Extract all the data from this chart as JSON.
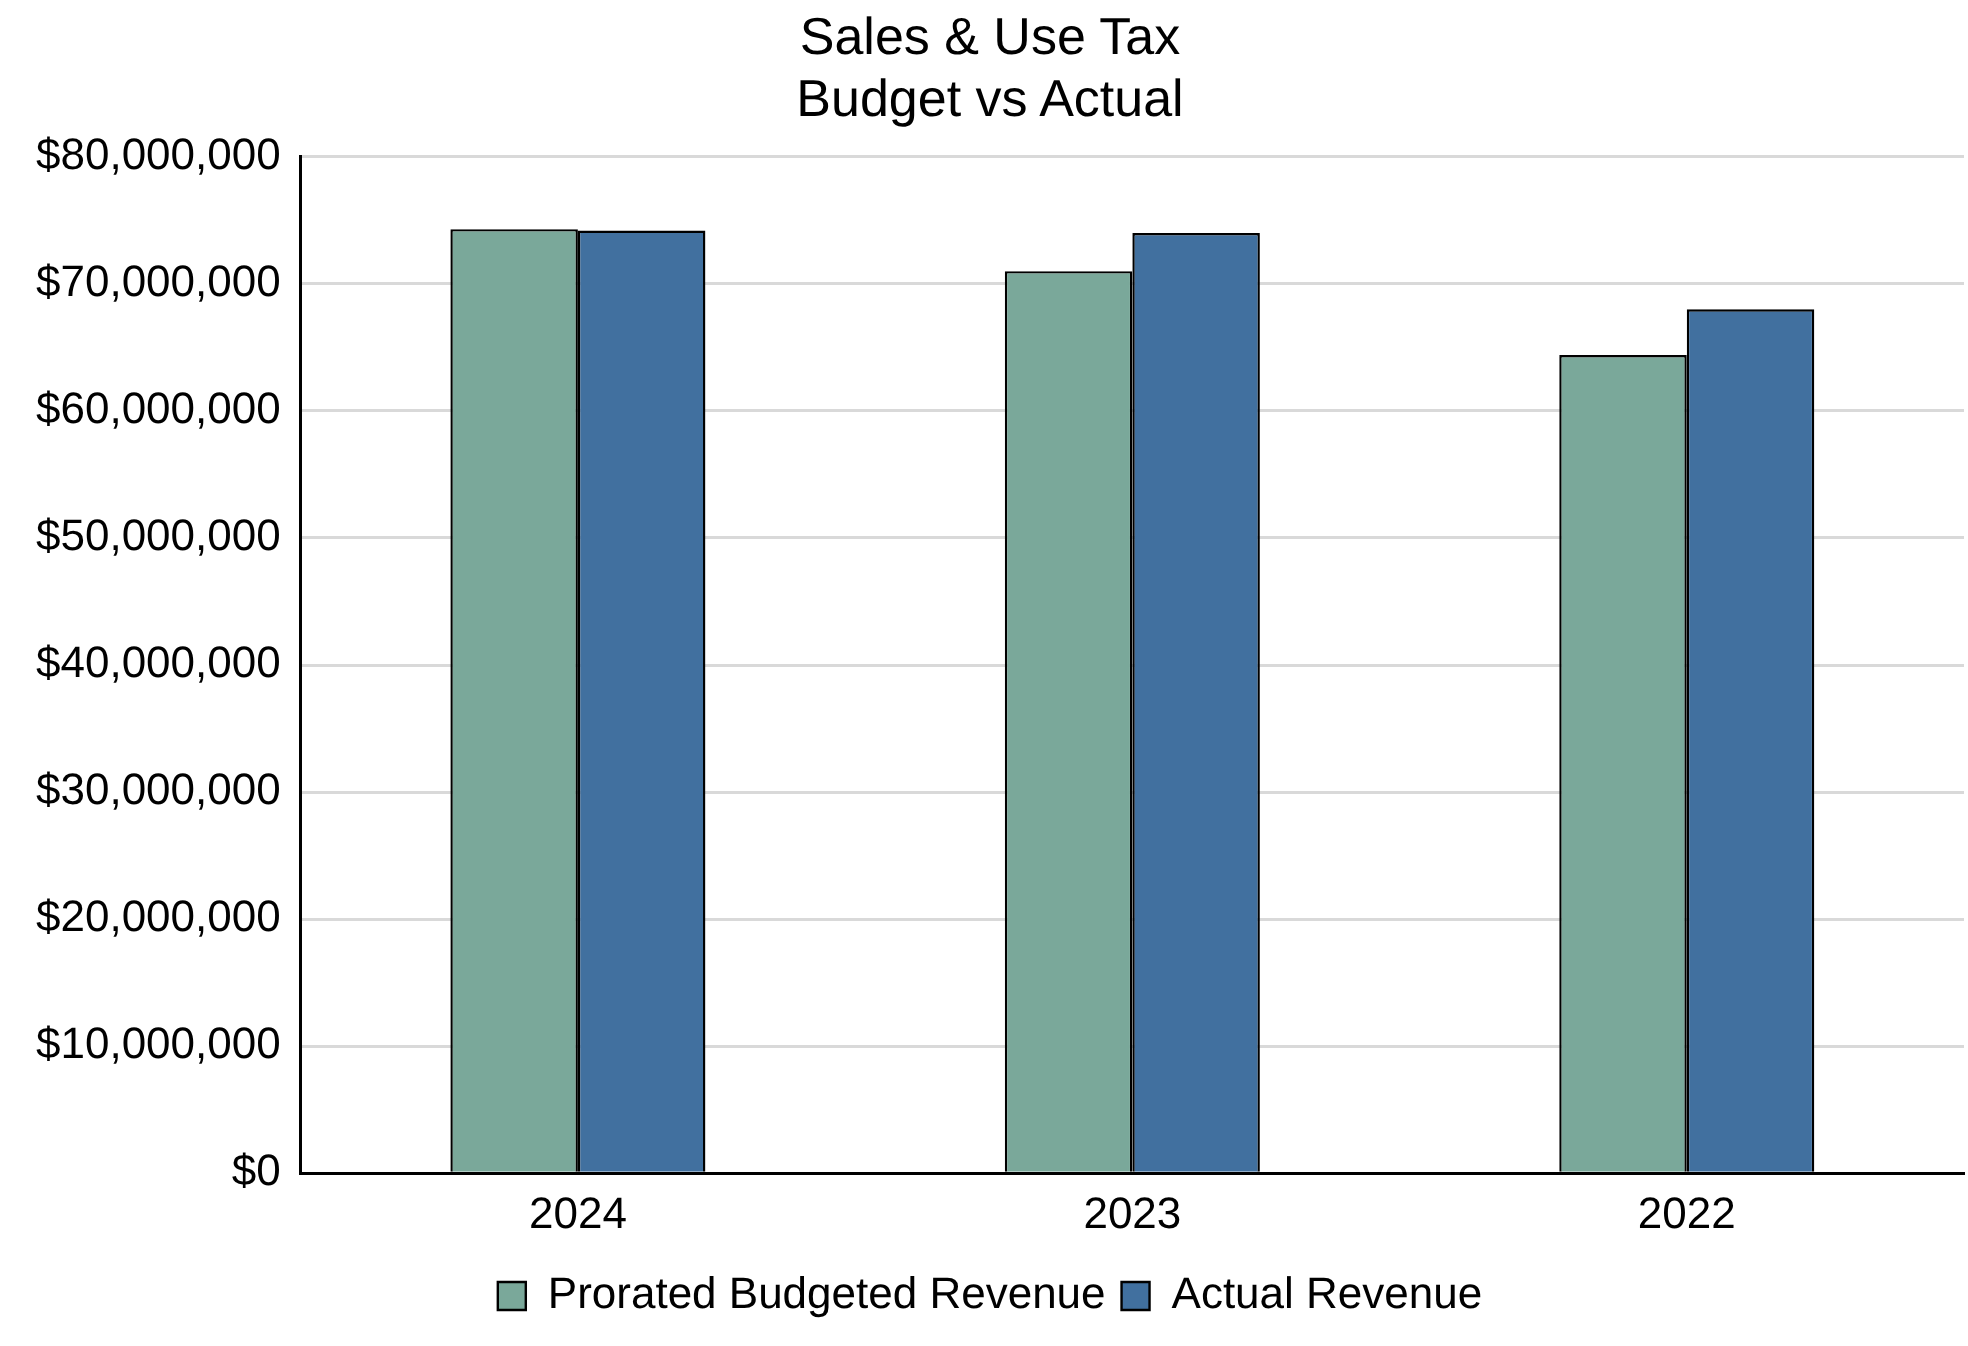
{
  "chart_data": {
    "type": "bar",
    "title": "Sales & Use Tax\nBudget vs Actual",
    "categories": [
      "2024",
      "2023",
      "2022"
    ],
    "series": [
      {
        "name": "Prorated Budgeted Revenue",
        "color": "#7aa89a",
        "values": [
          74300000,
          71000000,
          64400000
        ]
      },
      {
        "name": "Actual Revenue",
        "color": "#41709f",
        "values": [
          74200000,
          74000000,
          68000000
        ]
      }
    ],
    "ylim": [
      0,
      80000000
    ],
    "yticks": [
      {
        "value": 0,
        "label": "$0"
      },
      {
        "value": 10000000,
        "label": "$10,000,000"
      },
      {
        "value": 20000000,
        "label": "$20,000,000"
      },
      {
        "value": 30000000,
        "label": "$30,000,000"
      },
      {
        "value": 40000000,
        "label": "$40,000,000"
      },
      {
        "value": 50000000,
        "label": "$50,000,000"
      },
      {
        "value": 60000000,
        "label": "$60,000,000"
      },
      {
        "value": 70000000,
        "label": "$70,000,000"
      },
      {
        "value": 80000000,
        "label": "$80,000,000"
      }
    ],
    "grid": "y",
    "legend": "bottom"
  }
}
